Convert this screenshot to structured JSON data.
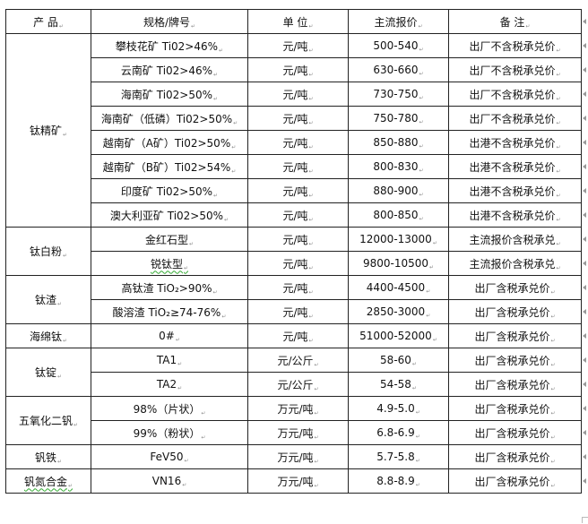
{
  "table": {
    "headers": [
      "产  品",
      "规格/牌号",
      "单 位",
      "主流报价",
      "备  注"
    ],
    "groups": [
      {
        "product": "钛精矿",
        "rows": [
          {
            "spec": "攀枝花矿 Ti02>46%",
            "unit": "元/吨",
            "price": "500-540",
            "note": "出厂不含税承兑价"
          },
          {
            "spec": "云南矿 Ti02>46%",
            "unit": "元/吨",
            "price": "630-660",
            "note": "出厂不含税承兑价"
          },
          {
            "spec": "海南矿 Ti02>50%",
            "unit": "元/吨",
            "price": "730-750",
            "note": "出厂不含税承兑价"
          },
          {
            "spec": "海南矿（低磷）Ti02>50%",
            "unit": "元/吨",
            "price": "750-780",
            "note": "出厂不含税承兑价"
          },
          {
            "spec": "越南矿（A矿）Ti02>50%",
            "unit": "元/吨",
            "price": "850-880",
            "note": "出港不含税承兑价"
          },
          {
            "spec": "越南矿（B矿）Ti02>54%",
            "unit": "元/吨",
            "price": "800-830",
            "note": "出港不含税承兑价"
          },
          {
            "spec": "印度矿 Ti02>50%",
            "unit": "元/吨",
            "price": "880-900",
            "note": "出港不含税承兑价"
          },
          {
            "spec": "澳大利亚矿 Ti02>50%",
            "unit": "元/吨",
            "price": "800-850",
            "note": "出港不含税承兑价"
          }
        ]
      },
      {
        "product": "钛白粉",
        "rows": [
          {
            "spec": "金红石型",
            "unit": "元/吨",
            "price": "12000-13000",
            "note": "主流报价含税承兑"
          },
          {
            "spec": "锐钛型",
            "unit": "元/吨",
            "price": "9800-10500",
            "note": "主流报价含税承兑",
            "spellcheck": true
          }
        ]
      },
      {
        "product": "钛渣",
        "rows": [
          {
            "spec": "高钛渣 TiO₂>90%",
            "unit": "元/吨",
            "price": "4400-4500",
            "note": "出厂含税承兑价"
          },
          {
            "spec": "酸溶渣 TiO₂≥74-76%",
            "unit": "元/吨",
            "price": "2850-3000",
            "note": "出厂含税承兑价"
          }
        ]
      },
      {
        "product": "海绵钛",
        "rows": [
          {
            "spec": "0#",
            "unit": "元/吨",
            "price": "51000-52000",
            "note": "出厂含税承兑价"
          }
        ]
      },
      {
        "product": "钛锭",
        "rows": [
          {
            "spec": "TA1",
            "unit": "元/公斤",
            "price": "58-60",
            "note": "出厂含税承兑价"
          },
          {
            "spec": "TA2",
            "unit": "元/公斤",
            "price": "54-58",
            "note": "出厂含税承兑价"
          }
        ]
      },
      {
        "product": "五氧化二钒",
        "rows": [
          {
            "spec": "98%（片状）",
            "unit": "万元/吨",
            "price": "4.9-5.0",
            "note": "出厂含税承兑价"
          },
          {
            "spec": "99%（粉状）",
            "unit": "万元/吨",
            "price": "6.8-6.9",
            "note": "出厂含税承兑价"
          }
        ]
      },
      {
        "product": "钒铁",
        "rows": [
          {
            "spec": "FeV50",
            "unit": "万元/吨",
            "price": "5.7-5.8",
            "note": "出厂含税承兑价"
          }
        ]
      },
      {
        "product": "钒氮合金",
        "productSpellcheck": true,
        "rows": [
          {
            "spec": "VN16",
            "unit": "万元/吨",
            "price": "8.8-8.9",
            "note": "出厂含税承兑价"
          }
        ]
      }
    ]
  }
}
